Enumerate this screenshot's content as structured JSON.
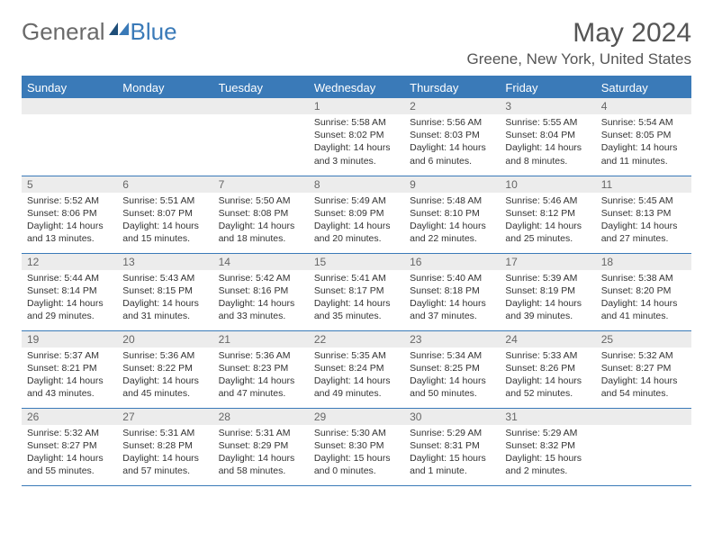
{
  "logo": {
    "text1": "General",
    "text2": "Blue"
  },
  "title": "May 2024",
  "location": "Greene, New York, United States",
  "day_headers": [
    "Sunday",
    "Monday",
    "Tuesday",
    "Wednesday",
    "Thursday",
    "Friday",
    "Saturday"
  ],
  "colors": {
    "header_bg": "#3a7ab8",
    "daynum_bg": "#ececec",
    "text": "#333333",
    "title": "#555555"
  },
  "weeks": [
    [
      {
        "n": "",
        "lines": []
      },
      {
        "n": "",
        "lines": []
      },
      {
        "n": "",
        "lines": []
      },
      {
        "n": "1",
        "lines": [
          "Sunrise: 5:58 AM",
          "Sunset: 8:02 PM",
          "Daylight: 14 hours",
          "and 3 minutes."
        ]
      },
      {
        "n": "2",
        "lines": [
          "Sunrise: 5:56 AM",
          "Sunset: 8:03 PM",
          "Daylight: 14 hours",
          "and 6 minutes."
        ]
      },
      {
        "n": "3",
        "lines": [
          "Sunrise: 5:55 AM",
          "Sunset: 8:04 PM",
          "Daylight: 14 hours",
          "and 8 minutes."
        ]
      },
      {
        "n": "4",
        "lines": [
          "Sunrise: 5:54 AM",
          "Sunset: 8:05 PM",
          "Daylight: 14 hours",
          "and 11 minutes."
        ]
      }
    ],
    [
      {
        "n": "5",
        "lines": [
          "Sunrise: 5:52 AM",
          "Sunset: 8:06 PM",
          "Daylight: 14 hours",
          "and 13 minutes."
        ]
      },
      {
        "n": "6",
        "lines": [
          "Sunrise: 5:51 AM",
          "Sunset: 8:07 PM",
          "Daylight: 14 hours",
          "and 15 minutes."
        ]
      },
      {
        "n": "7",
        "lines": [
          "Sunrise: 5:50 AM",
          "Sunset: 8:08 PM",
          "Daylight: 14 hours",
          "and 18 minutes."
        ]
      },
      {
        "n": "8",
        "lines": [
          "Sunrise: 5:49 AM",
          "Sunset: 8:09 PM",
          "Daylight: 14 hours",
          "and 20 minutes."
        ]
      },
      {
        "n": "9",
        "lines": [
          "Sunrise: 5:48 AM",
          "Sunset: 8:10 PM",
          "Daylight: 14 hours",
          "and 22 minutes."
        ]
      },
      {
        "n": "10",
        "lines": [
          "Sunrise: 5:46 AM",
          "Sunset: 8:12 PM",
          "Daylight: 14 hours",
          "and 25 minutes."
        ]
      },
      {
        "n": "11",
        "lines": [
          "Sunrise: 5:45 AM",
          "Sunset: 8:13 PM",
          "Daylight: 14 hours",
          "and 27 minutes."
        ]
      }
    ],
    [
      {
        "n": "12",
        "lines": [
          "Sunrise: 5:44 AM",
          "Sunset: 8:14 PM",
          "Daylight: 14 hours",
          "and 29 minutes."
        ]
      },
      {
        "n": "13",
        "lines": [
          "Sunrise: 5:43 AM",
          "Sunset: 8:15 PM",
          "Daylight: 14 hours",
          "and 31 minutes."
        ]
      },
      {
        "n": "14",
        "lines": [
          "Sunrise: 5:42 AM",
          "Sunset: 8:16 PM",
          "Daylight: 14 hours",
          "and 33 minutes."
        ]
      },
      {
        "n": "15",
        "lines": [
          "Sunrise: 5:41 AM",
          "Sunset: 8:17 PM",
          "Daylight: 14 hours",
          "and 35 minutes."
        ]
      },
      {
        "n": "16",
        "lines": [
          "Sunrise: 5:40 AM",
          "Sunset: 8:18 PM",
          "Daylight: 14 hours",
          "and 37 minutes."
        ]
      },
      {
        "n": "17",
        "lines": [
          "Sunrise: 5:39 AM",
          "Sunset: 8:19 PM",
          "Daylight: 14 hours",
          "and 39 minutes."
        ]
      },
      {
        "n": "18",
        "lines": [
          "Sunrise: 5:38 AM",
          "Sunset: 8:20 PM",
          "Daylight: 14 hours",
          "and 41 minutes."
        ]
      }
    ],
    [
      {
        "n": "19",
        "lines": [
          "Sunrise: 5:37 AM",
          "Sunset: 8:21 PM",
          "Daylight: 14 hours",
          "and 43 minutes."
        ]
      },
      {
        "n": "20",
        "lines": [
          "Sunrise: 5:36 AM",
          "Sunset: 8:22 PM",
          "Daylight: 14 hours",
          "and 45 minutes."
        ]
      },
      {
        "n": "21",
        "lines": [
          "Sunrise: 5:36 AM",
          "Sunset: 8:23 PM",
          "Daylight: 14 hours",
          "and 47 minutes."
        ]
      },
      {
        "n": "22",
        "lines": [
          "Sunrise: 5:35 AM",
          "Sunset: 8:24 PM",
          "Daylight: 14 hours",
          "and 49 minutes."
        ]
      },
      {
        "n": "23",
        "lines": [
          "Sunrise: 5:34 AM",
          "Sunset: 8:25 PM",
          "Daylight: 14 hours",
          "and 50 minutes."
        ]
      },
      {
        "n": "24",
        "lines": [
          "Sunrise: 5:33 AM",
          "Sunset: 8:26 PM",
          "Daylight: 14 hours",
          "and 52 minutes."
        ]
      },
      {
        "n": "25",
        "lines": [
          "Sunrise: 5:32 AM",
          "Sunset: 8:27 PM",
          "Daylight: 14 hours",
          "and 54 minutes."
        ]
      }
    ],
    [
      {
        "n": "26",
        "lines": [
          "Sunrise: 5:32 AM",
          "Sunset: 8:27 PM",
          "Daylight: 14 hours",
          "and 55 minutes."
        ]
      },
      {
        "n": "27",
        "lines": [
          "Sunrise: 5:31 AM",
          "Sunset: 8:28 PM",
          "Daylight: 14 hours",
          "and 57 minutes."
        ]
      },
      {
        "n": "28",
        "lines": [
          "Sunrise: 5:31 AM",
          "Sunset: 8:29 PM",
          "Daylight: 14 hours",
          "and 58 minutes."
        ]
      },
      {
        "n": "29",
        "lines": [
          "Sunrise: 5:30 AM",
          "Sunset: 8:30 PM",
          "Daylight: 15 hours",
          "and 0 minutes."
        ]
      },
      {
        "n": "30",
        "lines": [
          "Sunrise: 5:29 AM",
          "Sunset: 8:31 PM",
          "Daylight: 15 hours",
          "and 1 minute."
        ]
      },
      {
        "n": "31",
        "lines": [
          "Sunrise: 5:29 AM",
          "Sunset: 8:32 PM",
          "Daylight: 15 hours",
          "and 2 minutes."
        ]
      },
      {
        "n": "",
        "lines": []
      }
    ]
  ]
}
